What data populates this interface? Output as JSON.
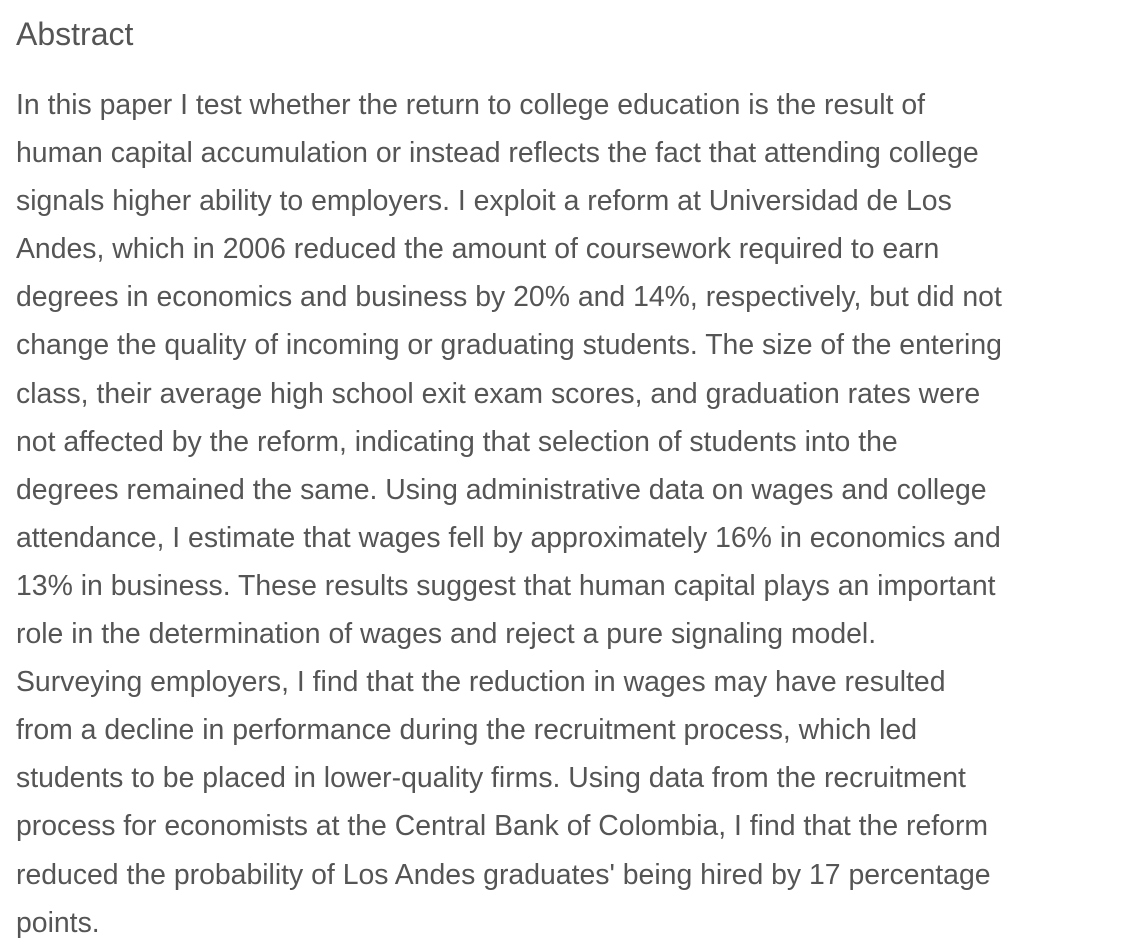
{
  "section": {
    "title": "Abstract"
  },
  "abstract": {
    "lines": [
      "In this paper I test whether the return to college education is the result of",
      "human capital accumulation or instead reflects the fact that attending college",
      "signals higher ability to employers. I exploit a reform at Universidad de Los",
      "Andes, which in 2006 reduced the amount of coursework required to earn",
      "degrees in economics and business by 20% and 14%, respectively, but did not",
      "change the quality of incoming or graduating students. The size of the entering",
      "class, their average high school exit exam scores, and graduation rates were",
      "not affected by the reform, indicating that selection of students into the",
      "degrees remained the same. Using administrative data on wages and college",
      "attendance, I estimate that wages fell by approximately 16% in economics and",
      "13% in business. These results suggest that human capital plays an important",
      "role in the determination of wages and reject a pure signaling model.",
      "Surveying employers, I find that the reduction in wages may have resulted",
      "from a decline in performance during the recruitment process, which led",
      "students to be placed in lower-quality firms. Using data from the recruitment",
      "process for economists at the Central Bank of Colombia, I find that the reform",
      "reduced the probability of Los Andes graduates' being hired by 17 percentage",
      "points."
    ]
  },
  "colors": {
    "text": "#555555",
    "background": "#ffffff"
  }
}
